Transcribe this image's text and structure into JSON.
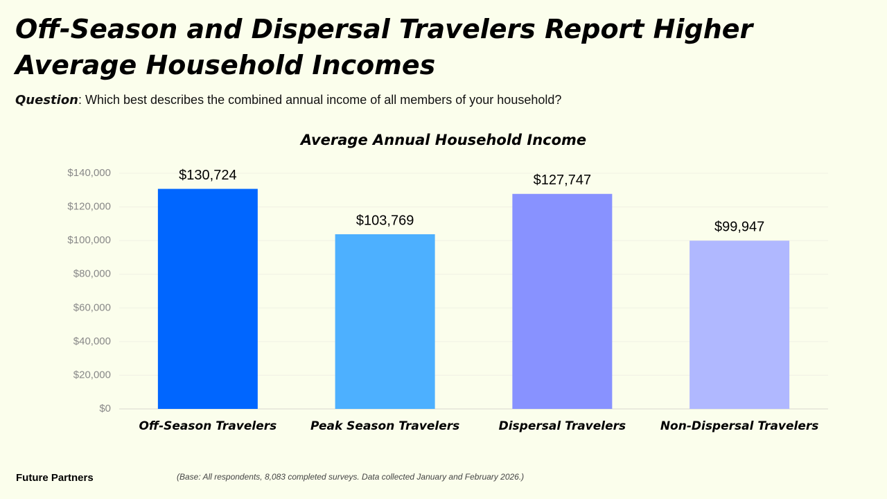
{
  "header": {
    "title": "Off-Season and Dispersal Travelers Report Higher Average Household Incomes",
    "question_label": "Question",
    "question_text": ": Which best describes the combined annual income of all members of your household?"
  },
  "chart_data": {
    "type": "bar",
    "title": "Average Annual Household Income",
    "categories": [
      "Off-Season Travelers",
      "Peak Season Travelers",
      "Dispersal Travelers",
      "Non-Dispersal Travelers"
    ],
    "values": [
      130724,
      103769,
      127747,
      99947
    ],
    "value_labels": [
      "$130,724",
      "$103,769",
      "$127,747",
      "$99,947"
    ],
    "colors": [
      "#0066ff",
      "#4db0ff",
      "#8892ff",
      "#b0b8ff"
    ],
    "ylim": [
      0,
      140000
    ],
    "yticks": [
      {
        "value": 0,
        "label": "$0"
      },
      {
        "value": 20000,
        "label": "$20,000"
      },
      {
        "value": 40000,
        "label": "$40,000"
      },
      {
        "value": 60000,
        "label": "$60,000"
      },
      {
        "value": 80000,
        "label": "$80,000"
      },
      {
        "value": 100000,
        "label": "$100,000"
      },
      {
        "value": 120000,
        "label": "$120,000"
      },
      {
        "value": 140000,
        "label": "$140,000"
      }
    ],
    "grid": true
  },
  "footer": {
    "brand": "Future Partners",
    "note": "(Base: All respondents, 8,083 completed surveys. Data collected January and February 2026.)"
  }
}
